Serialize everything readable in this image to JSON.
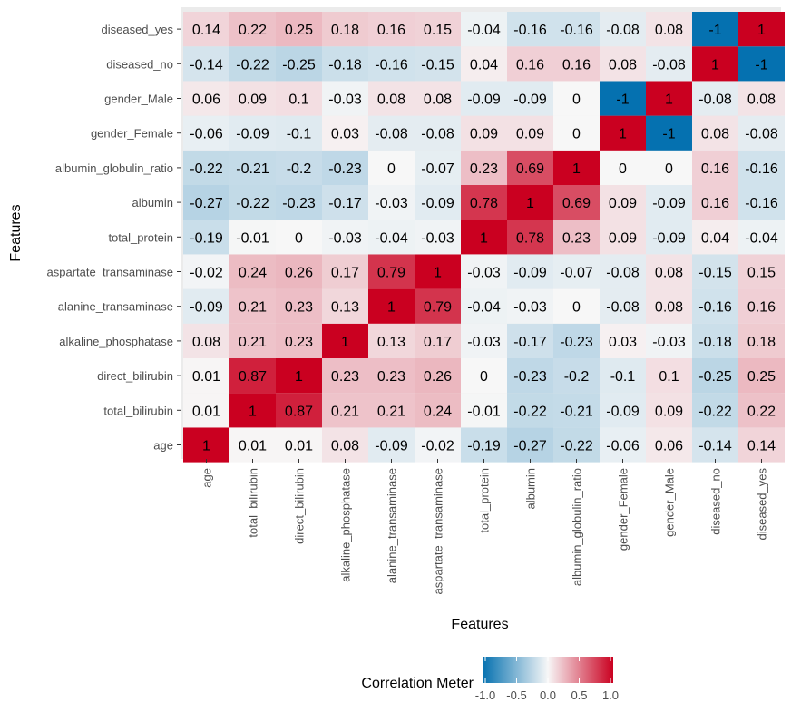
{
  "chart_data": {
    "type": "heatmap",
    "xlabel": "Features",
    "ylabel": "Features",
    "features": [
      "age",
      "total_bilirubin",
      "direct_bilirubin",
      "alkaline_phosphatase",
      "alanine_transaminase",
      "aspartate_transaminase",
      "total_protein",
      "albumin",
      "albumin_globulin_ratio",
      "gender_Female",
      "gender_Male",
      "diseased_no",
      "diseased_yes"
    ],
    "matrix": [
      [
        1,
        0.01,
        0.01,
        0.08,
        -0.09,
        -0.02,
        -0.19,
        -0.27,
        -0.22,
        -0.06,
        0.06,
        -0.14,
        0.14
      ],
      [
        0.01,
        1,
        0.87,
        0.21,
        0.21,
        0.24,
        -0.01,
        -0.22,
        -0.21,
        -0.09,
        0.09,
        -0.22,
        0.22
      ],
      [
        0.01,
        0.87,
        1,
        0.23,
        0.23,
        0.26,
        0,
        -0.23,
        -0.2,
        -0.1,
        0.1,
        -0.25,
        0.25
      ],
      [
        0.08,
        0.21,
        0.23,
        1,
        0.13,
        0.17,
        -0.03,
        -0.17,
        -0.23,
        0.03,
        -0.03,
        -0.18,
        0.18
      ],
      [
        -0.09,
        0.21,
        0.23,
        0.13,
        1,
        0.79,
        -0.04,
        -0.03,
        0,
        -0.08,
        0.08,
        -0.16,
        0.16
      ],
      [
        -0.02,
        0.24,
        0.26,
        0.17,
        0.79,
        1,
        -0.03,
        -0.09,
        -0.07,
        -0.08,
        0.08,
        -0.15,
        0.15
      ],
      [
        -0.19,
        -0.01,
        0,
        -0.03,
        -0.04,
        -0.03,
        1,
        0.78,
        0.23,
        0.09,
        -0.09,
        0.04,
        -0.04
      ],
      [
        -0.27,
        -0.22,
        -0.23,
        -0.17,
        -0.03,
        -0.09,
        0.78,
        1,
        0.69,
        0.09,
        -0.09,
        0.16,
        -0.16
      ],
      [
        -0.22,
        -0.21,
        -0.2,
        -0.23,
        0,
        -0.07,
        0.23,
        0.69,
        1,
        0,
        0,
        0.16,
        -0.16
      ],
      [
        -0.06,
        -0.09,
        -0.1,
        0.03,
        -0.08,
        -0.08,
        0.09,
        0.09,
        0,
        1,
        -1,
        0.08,
        -0.08
      ],
      [
        0.06,
        0.09,
        0.1,
        -0.03,
        0.08,
        0.08,
        -0.09,
        -0.09,
        0,
        -1,
        1,
        -0.08,
        0.08
      ],
      [
        -0.14,
        -0.22,
        -0.25,
        -0.18,
        -0.16,
        -0.15,
        0.04,
        0.16,
        0.16,
        0.08,
        -0.08,
        1,
        -1
      ],
      [
        0.14,
        0.22,
        0.25,
        0.18,
        0.16,
        0.15,
        -0.04,
        -0.16,
        -0.16,
        -0.08,
        0.08,
        -1,
        1
      ]
    ],
    "value_range": [
      -1,
      1
    ],
    "colors": {
      "low": "#0571b0",
      "mid": "#f7f7f7",
      "high": "#ca0020",
      "panel": "#ebebeb",
      "tick_text": "#4d4d4d"
    },
    "legend": {
      "title": "Correlation Meter",
      "position": "bottom",
      "ticks": [
        -1,
        -0.5,
        0,
        0.5,
        1
      ],
      "tick_labels": [
        "-1.0",
        "-0.5",
        "0.0",
        "0.5",
        "1.0"
      ]
    }
  }
}
